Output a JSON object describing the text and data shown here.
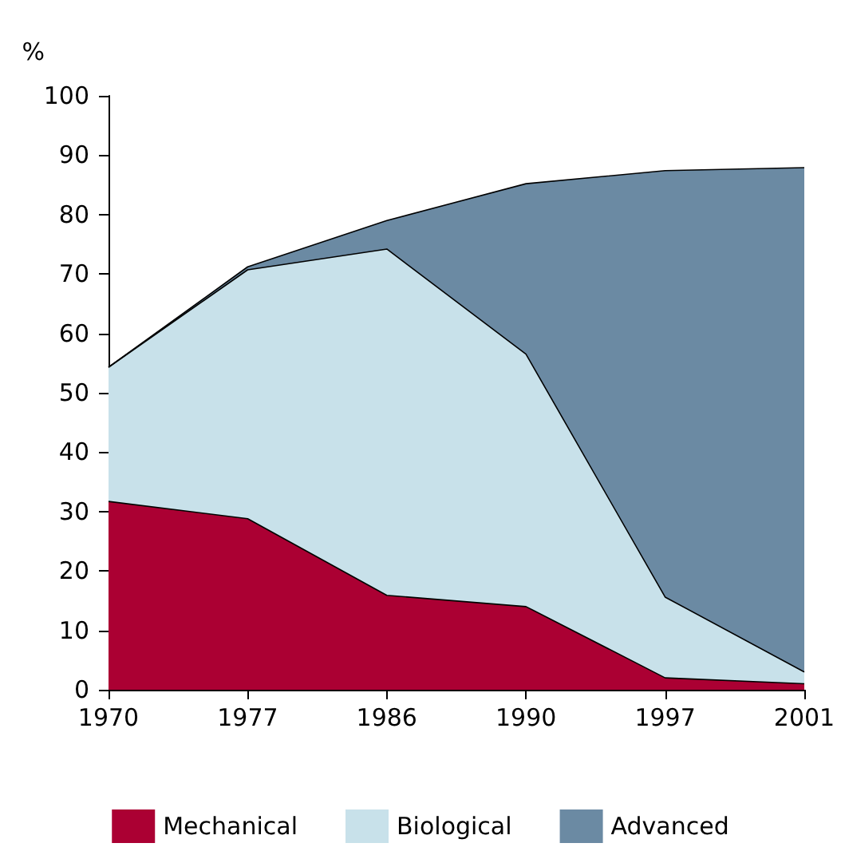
{
  "chart_data": {
    "type": "area",
    "ylabel": "%",
    "categories": [
      "1970",
      "1977",
      "1986",
      "1990",
      "1997",
      "2001"
    ],
    "series": [
      {
        "name": "Mechanical",
        "color": "#ab0033",
        "values": [
          31.7,
          28.8,
          15.9,
          14,
          2,
          1
        ]
      },
      {
        "name": "Biological",
        "color": "#c8e1ea",
        "values": [
          22.6,
          41.9,
          58.3,
          42.5,
          13.6,
          2
        ]
      },
      {
        "name": "Advanced",
        "color": "#6b8aa3",
        "values": [
          0,
          0.5,
          4.8,
          28.7,
          71.8,
          84.9
        ]
      }
    ],
    "stacked": true,
    "ylim": [
      0,
      100
    ],
    "yticks": [
      0,
      10,
      20,
      30,
      40,
      50,
      60,
      70,
      80,
      90,
      100
    ],
    "grid": false,
    "legend": "bottom"
  }
}
